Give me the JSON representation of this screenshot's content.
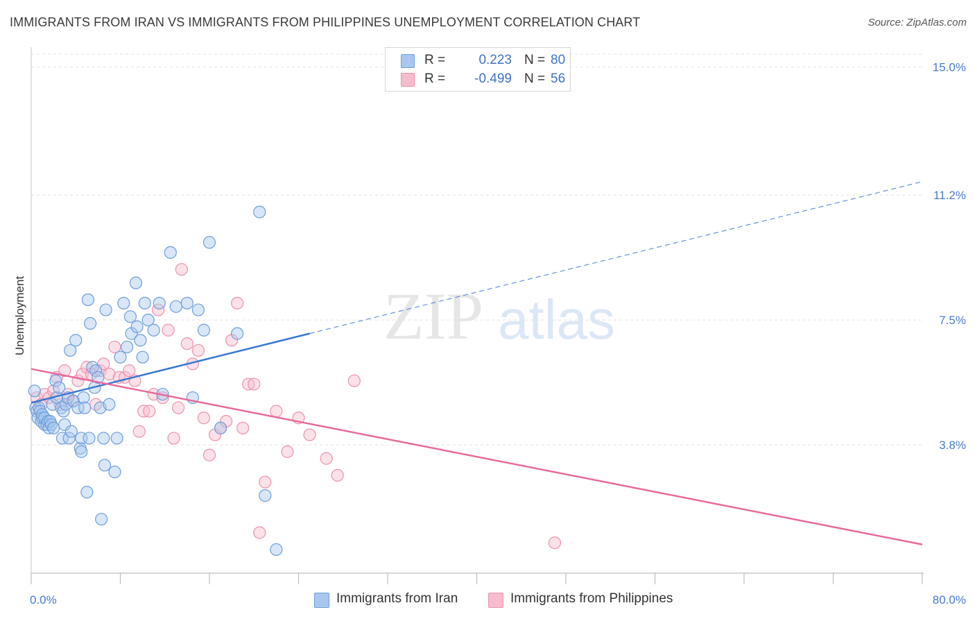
{
  "header": {
    "title": "IMMIGRANTS FROM IRAN VS IMMIGRANTS FROM PHILIPPINES UNEMPLOYMENT CORRELATION CHART",
    "source": "Source: ZipAtlas.com"
  },
  "watermark": {
    "zip": "ZIP",
    "atlas": "atlas"
  },
  "legend": {
    "rows": [
      {
        "r_label": "R =",
        "r_value": "0.223",
        "n_label": "N =",
        "n_value": "80",
        "color": "#a9c7ee"
      },
      {
        "r_label": "R =",
        "r_value": "-0.499",
        "n_label": "N =",
        "n_value": "56",
        "color": "#f6bccd"
      }
    ]
  },
  "bottom_legend": {
    "iran": "Immigrants from Iran",
    "philippines": "Immigrants from Philippines"
  },
  "chart_data": {
    "type": "scatter",
    "ylabel": "Unemployment",
    "x_tick_labels": [
      "0.0%",
      "80.0%"
    ],
    "y_tick_labels": [
      "15.0%",
      "11.2%",
      "7.5%",
      "3.8%"
    ],
    "y_ticks": [
      15.0,
      11.2,
      7.5,
      3.8
    ],
    "xlim": [
      0,
      80
    ],
    "ylim": [
      0.0,
      15.5
    ],
    "grid": true,
    "colors": {
      "iran_fill": "#a9c7ee",
      "iran_stroke": "#6e9edb",
      "iran_line": "#3a78d0",
      "phil_fill": "#f6bccd",
      "phil_stroke": "#eb93ae",
      "phil_line": "#e8699a"
    },
    "series": [
      {
        "name": "Immigrants from Iran",
        "trend": {
          "x0": 0,
          "y0": 5.05,
          "x1": 25,
          "y1": 7.1,
          "dash_x1": 80,
          "dash_y1": 11.6
        },
        "points": [
          [
            0.3,
            5.4
          ],
          [
            0.4,
            4.9
          ],
          [
            0.5,
            4.8
          ],
          [
            0.6,
            4.6
          ],
          [
            0.7,
            4.9
          ],
          [
            0.8,
            4.8
          ],
          [
            0.9,
            4.5
          ],
          [
            1.0,
            4.6
          ],
          [
            1.0,
            4.7
          ],
          [
            1.2,
            4.4
          ],
          [
            1.2,
            4.6
          ],
          [
            1.4,
            4.4
          ],
          [
            1.5,
            4.5
          ],
          [
            1.6,
            4.3
          ],
          [
            1.7,
            4.5
          ],
          [
            1.8,
            4.4
          ],
          [
            1.9,
            5.0
          ],
          [
            2.0,
            4.3
          ],
          [
            2.2,
            5.7
          ],
          [
            2.3,
            5.2
          ],
          [
            2.5,
            5.5
          ],
          [
            2.7,
            4.9
          ],
          [
            2.8,
            4.0
          ],
          [
            2.9,
            4.8
          ],
          [
            3.0,
            4.4
          ],
          [
            3.1,
            5.0
          ],
          [
            3.3,
            5.2
          ],
          [
            3.4,
            4.0
          ],
          [
            3.5,
            6.6
          ],
          [
            3.6,
            4.2
          ],
          [
            3.8,
            5.1
          ],
          [
            4.0,
            6.9
          ],
          [
            4.2,
            4.9
          ],
          [
            4.4,
            3.7
          ],
          [
            4.5,
            3.6
          ],
          [
            4.5,
            4.0
          ],
          [
            4.7,
            5.2
          ],
          [
            4.8,
            4.9
          ],
          [
            5.0,
            2.4
          ],
          [
            5.1,
            8.1
          ],
          [
            5.2,
            4.0
          ],
          [
            5.3,
            7.4
          ],
          [
            5.5,
            6.1
          ],
          [
            5.7,
            5.5
          ],
          [
            5.8,
            6.0
          ],
          [
            6.0,
            5.8
          ],
          [
            6.2,
            4.9
          ],
          [
            6.3,
            1.6
          ],
          [
            6.5,
            4.0
          ],
          [
            6.6,
            3.2
          ],
          [
            6.7,
            7.8
          ],
          [
            7.0,
            5.0
          ],
          [
            7.5,
            3.0
          ],
          [
            7.7,
            4.0
          ],
          [
            8.0,
            6.4
          ],
          [
            8.3,
            8.0
          ],
          [
            8.6,
            6.7
          ],
          [
            8.9,
            7.6
          ],
          [
            9.0,
            7.1
          ],
          [
            9.4,
            8.6
          ],
          [
            9.5,
            7.3
          ],
          [
            9.8,
            6.9
          ],
          [
            10.0,
            6.4
          ],
          [
            10.2,
            8.0
          ],
          [
            10.5,
            7.5
          ],
          [
            11.0,
            7.2
          ],
          [
            11.5,
            8.0
          ],
          [
            11.8,
            5.3
          ],
          [
            12.5,
            9.5
          ],
          [
            13.0,
            7.9
          ],
          [
            14.0,
            8.0
          ],
          [
            14.5,
            5.2
          ],
          [
            15.0,
            7.8
          ],
          [
            15.5,
            7.2
          ],
          [
            16.0,
            9.8
          ],
          [
            17.0,
            4.3
          ],
          [
            18.5,
            7.1
          ],
          [
            20.5,
            10.7
          ],
          [
            21.0,
            2.3
          ],
          [
            22.0,
            0.7
          ]
        ]
      },
      {
        "name": "Immigrants from Philippines",
        "trend": {
          "x0": 0,
          "y0": 6.05,
          "x1": 80,
          "y1": 0.85
        },
        "points": [
          [
            0.5,
            5.2
          ],
          [
            0.9,
            5.0
          ],
          [
            1.2,
            5.3
          ],
          [
            1.6,
            5.2
          ],
          [
            2.0,
            5.4
          ],
          [
            2.3,
            5.8
          ],
          [
            2.6,
            5.0
          ],
          [
            3.0,
            6.0
          ],
          [
            3.3,
            5.3
          ],
          [
            3.7,
            5.1
          ],
          [
            4.2,
            5.7
          ],
          [
            4.6,
            5.9
          ],
          [
            5.0,
            6.1
          ],
          [
            5.4,
            5.9
          ],
          [
            5.8,
            5.0
          ],
          [
            6.2,
            6.0
          ],
          [
            6.5,
            6.2
          ],
          [
            7.0,
            5.9
          ],
          [
            7.5,
            6.7
          ],
          [
            7.9,
            5.8
          ],
          [
            8.4,
            5.8
          ],
          [
            8.8,
            6.0
          ],
          [
            9.3,
            5.7
          ],
          [
            9.7,
            4.2
          ],
          [
            10.1,
            4.8
          ],
          [
            10.6,
            4.8
          ],
          [
            11.0,
            5.3
          ],
          [
            11.4,
            7.8
          ],
          [
            11.8,
            5.2
          ],
          [
            12.3,
            7.2
          ],
          [
            12.8,
            4.0
          ],
          [
            13.2,
            4.9
          ],
          [
            13.5,
            9.0
          ],
          [
            14.0,
            6.8
          ],
          [
            14.5,
            6.2
          ],
          [
            15.0,
            6.6
          ],
          [
            15.5,
            4.6
          ],
          [
            16.0,
            3.5
          ],
          [
            16.5,
            4.1
          ],
          [
            17.0,
            4.3
          ],
          [
            17.5,
            4.5
          ],
          [
            18.0,
            6.9
          ],
          [
            18.5,
            8.0
          ],
          [
            19.0,
            4.3
          ],
          [
            19.5,
            5.6
          ],
          [
            20.0,
            5.6
          ],
          [
            20.5,
            1.2
          ],
          [
            21.0,
            2.7
          ],
          [
            22.0,
            4.8
          ],
          [
            23.0,
            3.6
          ],
          [
            24.0,
            4.6
          ],
          [
            25.0,
            4.1
          ],
          [
            26.5,
            3.4
          ],
          [
            27.5,
            2.9
          ],
          [
            29.0,
            5.7
          ],
          [
            47.0,
            0.9
          ]
        ]
      }
    ]
  }
}
